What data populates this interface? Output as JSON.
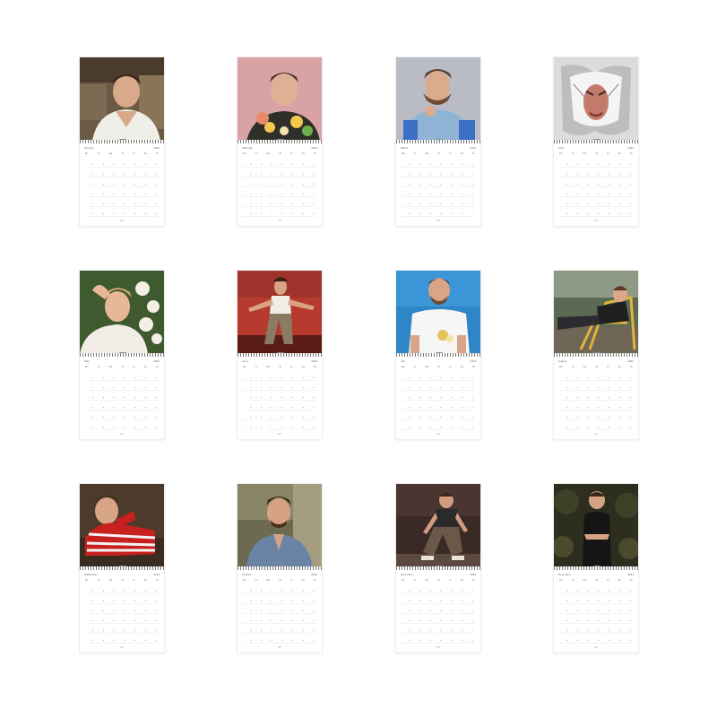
{
  "calendar": {
    "pages": [
      {
        "month": "January",
        "year": "2024",
        "photo": "portrait-bookshelf"
      },
      {
        "month": "February",
        "year": "2024",
        "photo": "portrait-pink-flowers"
      },
      {
        "month": "March",
        "year": "2024",
        "photo": "portrait-blue-shirt"
      },
      {
        "month": "April",
        "year": "2024",
        "photo": "portrait-torn-paper"
      },
      {
        "month": "May",
        "year": "2024",
        "photo": "portrait-white-roses"
      },
      {
        "month": "June",
        "year": "2024",
        "photo": "portrait-red-sofa"
      },
      {
        "month": "July",
        "year": "2024",
        "photo": "portrait-blue-backdrop"
      },
      {
        "month": "August",
        "year": "2024",
        "photo": "portrait-yellow-chair"
      },
      {
        "month": "September",
        "year": "2024",
        "photo": "portrait-striped-sweater"
      },
      {
        "month": "October",
        "year": "2024",
        "photo": "portrait-denim-jacket"
      },
      {
        "month": "November",
        "year": "2024",
        "photo": "portrait-crouching"
      },
      {
        "month": "December",
        "year": "2024",
        "photo": "portrait-garden-night"
      }
    ],
    "weekdays": [
      "Mo",
      "Tu",
      "We",
      "Th",
      "Fr",
      "Sa",
      "Su"
    ]
  }
}
